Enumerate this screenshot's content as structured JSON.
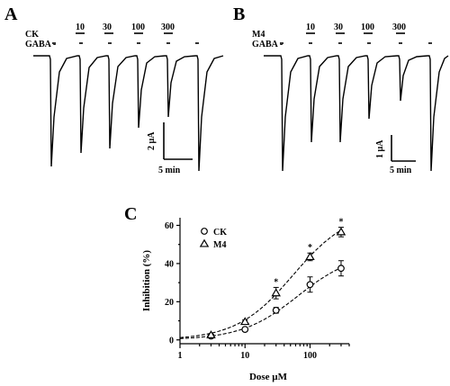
{
  "panels": {
    "a": {
      "letter": "A",
      "drug_label": "CK",
      "gaba_label": "GABA -",
      "doses": [
        "10",
        "30",
        "100",
        "300"
      ],
      "scale_current": "2 µA",
      "scale_time": "5 min"
    },
    "b": {
      "letter": "B",
      "drug_label": "M4",
      "gaba_label": "GABA -",
      "doses": [
        "10",
        "30",
        "100",
        "300"
      ],
      "scale_current": "1 µA",
      "scale_time": "5 min"
    },
    "c": {
      "letter": "C"
    }
  },
  "chart_data": {
    "type": "scatter",
    "title": "",
    "xlabel": "Dose µM",
    "ylabel": "Inhibition (%)",
    "xscale": "log",
    "xlim": [
      1,
      400
    ],
    "ylim": [
      0,
      60
    ],
    "xticks": [
      1,
      10,
      100
    ],
    "xtick_labels": [
      "1",
      "10",
      "100"
    ],
    "yticks": [
      0,
      20,
      40,
      60
    ],
    "ytick_labels": [
      "0",
      "20",
      "40",
      "60"
    ],
    "legend_position": "top-left",
    "significance_marker": "*",
    "series": [
      {
        "name": "CK",
        "marker": "circle",
        "x": [
          3,
          10,
          30,
          100,
          300
        ],
        "y": [
          2,
          5.5,
          15.5,
          29,
          37.5
        ],
        "err": [
          1,
          1,
          1.5,
          4,
          4
        ],
        "fit": {
          "bottom": 0,
          "top": 46,
          "ec50": 65,
          "hill": 1.0
        }
      },
      {
        "name": "M4",
        "marker": "triangle",
        "x": [
          3,
          10,
          30,
          100,
          300
        ],
        "y": [
          2.5,
          9.5,
          24.5,
          43.5,
          56.5
        ],
        "err": [
          0.5,
          1,
          3,
          2,
          2.5
        ],
        "significant": [
          false,
          false,
          true,
          true,
          true
        ],
        "fit": {
          "bottom": 0,
          "top": 68,
          "ec50": 55,
          "hill": 1.0
        }
      }
    ]
  }
}
